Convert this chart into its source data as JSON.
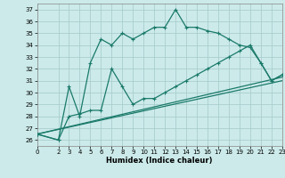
{
  "xlabel": "Humidex (Indice chaleur)",
  "bg_color": "#cceaea",
  "grid_color": "#aacece",
  "line_color": "#1a7a6a",
  "xlim": [
    0,
    23
  ],
  "ylim": [
    25.5,
    37.5
  ],
  "yticks": [
    26,
    27,
    28,
    29,
    30,
    31,
    32,
    33,
    34,
    35,
    36,
    37
  ],
  "xticks": [
    0,
    2,
    3,
    4,
    5,
    6,
    7,
    8,
    9,
    10,
    11,
    12,
    13,
    14,
    15,
    16,
    17,
    18,
    19,
    20,
    21,
    22,
    23
  ],
  "line1_x": [
    0,
    2,
    3,
    4,
    5,
    6,
    7,
    8,
    9,
    10,
    11,
    12,
    13,
    14,
    15,
    16,
    17,
    18,
    19,
    20,
    21,
    22,
    23
  ],
  "line1_y": [
    26.5,
    26.0,
    30.5,
    28.0,
    32.5,
    34.5,
    34.0,
    35.0,
    34.5,
    35.0,
    35.5,
    35.5,
    37.0,
    35.5,
    35.5,
    35.2,
    35.0,
    34.5,
    34.0,
    33.8,
    32.5,
    31.0,
    31.5
  ],
  "line2_x": [
    0,
    2,
    3,
    4,
    5,
    6,
    7,
    8,
    9,
    10,
    11,
    12,
    13,
    14,
    15,
    16,
    17,
    18,
    19,
    20,
    21,
    22,
    23
  ],
  "line2_y": [
    26.5,
    26.0,
    28.0,
    28.2,
    28.5,
    28.5,
    32.0,
    30.5,
    29.0,
    29.5,
    29.5,
    30.0,
    30.5,
    31.0,
    31.5,
    32.0,
    32.5,
    33.0,
    33.5,
    34.0,
    32.5,
    31.0,
    31.5
  ],
  "line3_x": [
    0,
    23
  ],
  "line3_y": [
    26.5,
    31.3
  ],
  "line4_x": [
    0,
    23
  ],
  "line4_y": [
    26.5,
    31.0
  ]
}
